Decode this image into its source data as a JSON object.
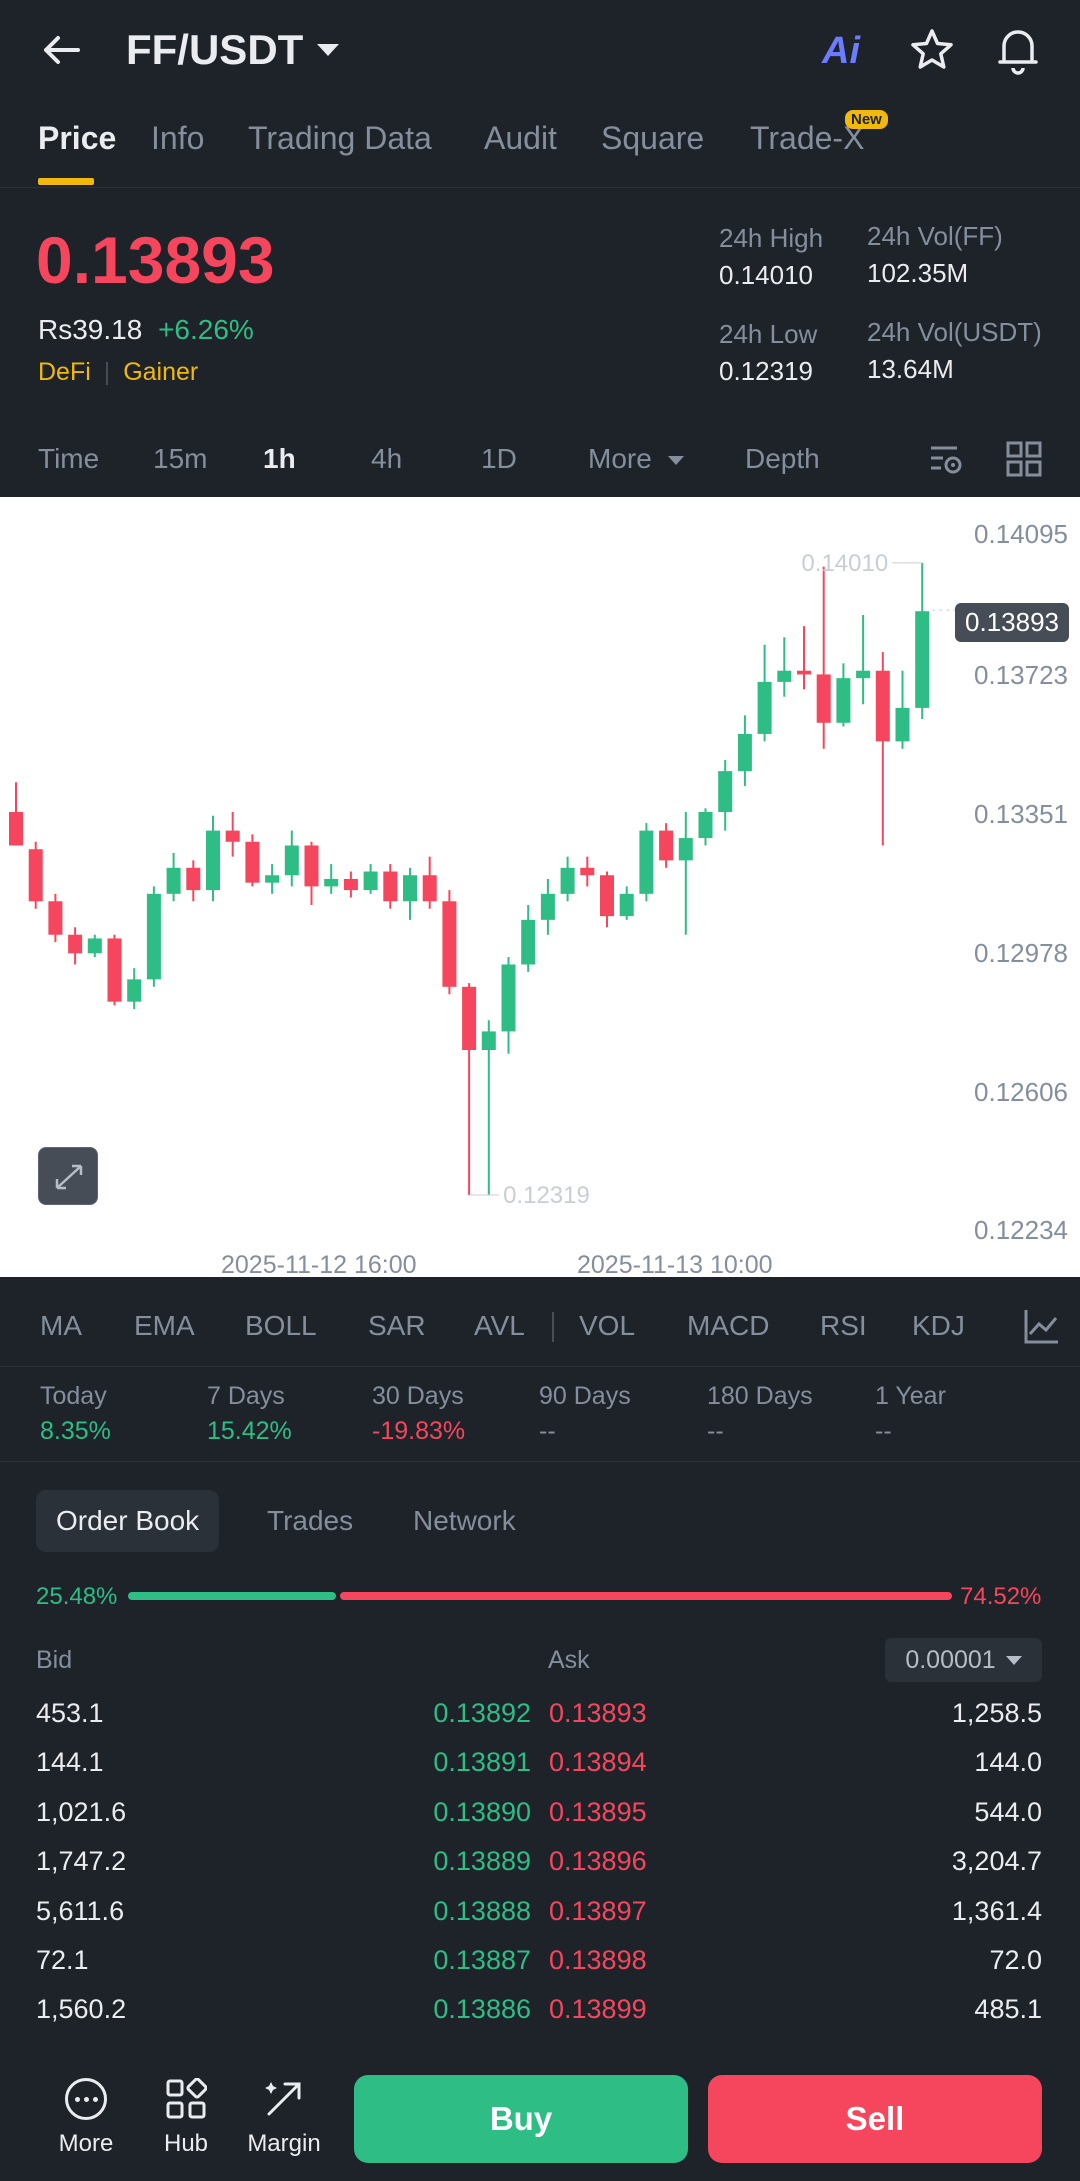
{
  "header": {
    "pair": "FF/USDT",
    "ai_label": "Ai"
  },
  "tabs": [
    "Price",
    "Info",
    "Trading Data",
    "Audit",
    "Square",
    "Trade-X"
  ],
  "new_badge": "New",
  "price": {
    "last": "0.13893",
    "fiat": "Rs39.18",
    "change": "+6.26%",
    "tags": [
      "DeFi",
      "Gainer"
    ]
  },
  "stats": {
    "high_label": "24h High",
    "high": "0.14010",
    "vol_ff_label": "24h Vol(FF)",
    "vol_ff": "102.35M",
    "low_label": "24h Low",
    "low": "0.12319",
    "vol_usdt_label": "24h Vol(USDT)",
    "vol_usdt": "13.64M"
  },
  "timeframes": [
    "Time",
    "15m",
    "1h",
    "4h",
    "1D",
    "More",
    "Depth"
  ],
  "active_timeframe": "1h",
  "chart_data": {
    "type": "candlestick",
    "y_ticks": [
      "0.14095",
      "0.13723",
      "0.13351",
      "0.12978",
      "0.12606",
      "0.12234"
    ],
    "ylim": [
      0.12234,
      0.14095
    ],
    "x_ticks": [
      "2025-11-12 16:00",
      "2025-11-13 10:00"
    ],
    "current_price_tag": "0.13893",
    "high_marker": "0.14010",
    "low_marker": "0.12319",
    "colors": {
      "up": "#2ebd85",
      "down": "#f6465d"
    },
    "candles": [
      [
        0.1335,
        0.1326,
        0.1343,
        0.1326
      ],
      [
        0.1325,
        0.1311,
        0.1327,
        0.1309
      ],
      [
        0.1311,
        0.1302,
        0.1313,
        0.13
      ],
      [
        0.1302,
        0.1297,
        0.1304,
        0.1294
      ],
      [
        0.1297,
        0.1301,
        0.1302,
        0.1296
      ],
      [
        0.1301,
        0.1284,
        0.1302,
        0.1283
      ],
      [
        0.1284,
        0.129,
        0.1293,
        0.1282
      ],
      [
        0.129,
        0.1313,
        0.1315,
        0.1288
      ],
      [
        0.1313,
        0.132,
        0.1324,
        0.1311
      ],
      [
        0.132,
        0.1314,
        0.1322,
        0.1311
      ],
      [
        0.1314,
        0.133,
        0.1334,
        0.1311
      ],
      [
        0.133,
        0.1327,
        0.1335,
        0.1323
      ],
      [
        0.1327,
        0.1316,
        0.1329,
        0.1315
      ],
      [
        0.1316,
        0.1318,
        0.1321,
        0.1313
      ],
      [
        0.1318,
        0.1326,
        0.133,
        0.1315
      ],
      [
        0.1326,
        0.1315,
        0.1327,
        0.131
      ],
      [
        0.1315,
        0.1317,
        0.1321,
        0.1313
      ],
      [
        0.1317,
        0.1314,
        0.1319,
        0.1312
      ],
      [
        0.1314,
        0.1319,
        0.1321,
        0.1313
      ],
      [
        0.1319,
        0.1311,
        0.1321,
        0.1309
      ],
      [
        0.1311,
        0.1318,
        0.132,
        0.1306
      ],
      [
        0.1318,
        0.1311,
        0.1323,
        0.1309
      ],
      [
        0.1311,
        0.1288,
        0.1314,
        0.1286
      ],
      [
        0.1288,
        0.1271,
        0.1289,
        0.1232
      ],
      [
        0.1271,
        0.1276,
        0.1279,
        0.1232
      ],
      [
        0.1276,
        0.1294,
        0.1296,
        0.127
      ],
      [
        0.1294,
        0.1306,
        0.131,
        0.1292
      ],
      [
        0.1306,
        0.1313,
        0.1317,
        0.1302
      ],
      [
        0.1313,
        0.132,
        0.1323,
        0.1311
      ],
      [
        0.132,
        0.1318,
        0.1323,
        0.1315
      ],
      [
        0.1318,
        0.1307,
        0.1319,
        0.1304
      ],
      [
        0.1307,
        0.1313,
        0.1315,
        0.1306
      ],
      [
        0.1313,
        0.133,
        0.1332,
        0.1311
      ],
      [
        0.133,
        0.1322,
        0.1332,
        0.132
      ],
      [
        0.1322,
        0.1328,
        0.1335,
        0.1302
      ],
      [
        0.1328,
        0.1335,
        0.1336,
        0.1326
      ],
      [
        0.1335,
        0.1346,
        0.1349,
        0.133
      ],
      [
        0.1346,
        0.1356,
        0.1361,
        0.1342
      ],
      [
        0.1356,
        0.137,
        0.138,
        0.1354
      ],
      [
        0.137,
        0.1373,
        0.1382,
        0.1366
      ],
      [
        0.1373,
        0.1372,
        0.1385,
        0.1368
      ],
      [
        0.1372,
        0.1359,
        0.1401,
        0.1352
      ],
      [
        0.1359,
        0.1371,
        0.1375,
        0.1358
      ],
      [
        0.1371,
        0.1373,
        0.1388,
        0.1364
      ],
      [
        0.1373,
        0.1354,
        0.1378,
        0.1326
      ],
      [
        0.1354,
        0.1363,
        0.1373,
        0.1352
      ],
      [
        0.1363,
        0.1389,
        0.1402,
        0.136
      ]
    ]
  },
  "indicators": [
    "MA",
    "EMA",
    "BOLL",
    "SAR",
    "AVL",
    "VOL",
    "MACD",
    "RSI",
    "KDJ"
  ],
  "performance": [
    {
      "label": "Today",
      "value": "8.35%",
      "color": "#2ebd85"
    },
    {
      "label": "7 Days",
      "value": "15.42%",
      "color": "#2ebd85"
    },
    {
      "label": "30 Days",
      "value": "-19.83%",
      "color": "#f6465d"
    },
    {
      "label": "90 Days",
      "value": "--",
      "color": "#848e9c"
    },
    {
      "label": "180 Days",
      "value": "--",
      "color": "#848e9c"
    },
    {
      "label": "1 Year",
      "value": "--",
      "color": "#848e9c"
    }
  ],
  "book_tabs": [
    "Order Book",
    "Trades",
    "Network"
  ],
  "ratio": {
    "bid": "25.48%",
    "ask": "74.52%",
    "bid_fraction": 0.2548
  },
  "book_headers": {
    "bid": "Bid",
    "ask": "Ask",
    "precision": "0.00001"
  },
  "order_book": [
    {
      "bid_qty": "453.1",
      "bid": "0.13892",
      "ask": "0.13893",
      "ask_qty": "1,258.5"
    },
    {
      "bid_qty": "144.1",
      "bid": "0.13891",
      "ask": "0.13894",
      "ask_qty": "144.0"
    },
    {
      "bid_qty": "1,021.6",
      "bid": "0.13890",
      "ask": "0.13895",
      "ask_qty": "544.0"
    },
    {
      "bid_qty": "1,747.2",
      "bid": "0.13889",
      "ask": "0.13896",
      "ask_qty": "3,204.7"
    },
    {
      "bid_qty": "5,611.6",
      "bid": "0.13888",
      "ask": "0.13897",
      "ask_qty": "1,361.4"
    },
    {
      "bid_qty": "72.1",
      "bid": "0.13887",
      "ask": "0.13898",
      "ask_qty": "72.0"
    },
    {
      "bid_qty": "1,560.2",
      "bid": "0.13886",
      "ask": "0.13899",
      "ask_qty": "485.1"
    }
  ],
  "bottom_nav": {
    "more": "More",
    "hub": "Hub",
    "margin": "Margin",
    "buy": "Buy",
    "sell": "Sell"
  }
}
